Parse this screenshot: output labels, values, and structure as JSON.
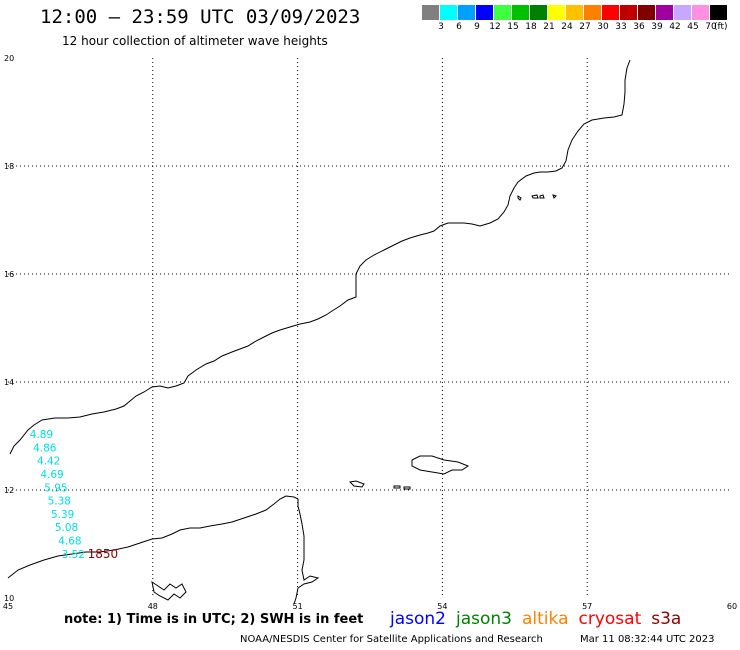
{
  "header": {
    "title": "12:00 — 23:59 UTC 03/09/2023",
    "subtitle": "12 hour collection of altimeter wave heights"
  },
  "legend": {
    "unit": "(ft)",
    "bins": [
      {
        "label": "3",
        "color": "#808080"
      },
      {
        "label": "6",
        "color": "#00ffff"
      },
      {
        "label": "9",
        "color": "#00a0ff"
      },
      {
        "label": "12",
        "color": "#0000ff"
      },
      {
        "label": "15",
        "color": "#40ff40"
      },
      {
        "label": "18",
        "color": "#00c000"
      },
      {
        "label": "21",
        "color": "#008000"
      },
      {
        "label": "24",
        "color": "#ffff00"
      },
      {
        "label": "27",
        "color": "#ffc000"
      },
      {
        "label": "30",
        "color": "#ff8000"
      },
      {
        "label": "33",
        "color": "#ff0000"
      },
      {
        "label": "36",
        "color": "#c00000"
      },
      {
        "label": "39",
        "color": "#800000"
      },
      {
        "label": "42",
        "color": "#a000a0"
      },
      {
        "label": "45",
        "color": "#c8a8ff"
      },
      {
        "label": "70",
        "color": "#ff90e0"
      },
      {
        "label": "",
        "color": "#000000"
      }
    ]
  },
  "axes": {
    "x_ticks": [
      "45",
      "48",
      "51",
      "54",
      "57",
      "60"
    ],
    "y_ticks": [
      "20",
      "18",
      "16",
      "14",
      "12",
      "10"
    ],
    "lon_range": [
      45,
      60
    ],
    "lat_range": [
      10,
      20
    ]
  },
  "observations": [
    {
      "value": "4.89",
      "lon": 45.45,
      "lat": 12.96
    },
    {
      "value": "4.86",
      "lon": 45.52,
      "lat": 12.71
    },
    {
      "value": "4.42",
      "lon": 45.6,
      "lat": 12.47
    },
    {
      "value": "4.69",
      "lon": 45.67,
      "lat": 12.22
    },
    {
      "value": "5.95",
      "lon": 45.75,
      "lat": 11.97
    },
    {
      "value": "5.38",
      "lon": 45.82,
      "lat": 11.73
    },
    {
      "value": "5.39",
      "lon": 45.89,
      "lat": 11.48
    },
    {
      "value": "5.08",
      "lon": 45.97,
      "lat": 11.24
    },
    {
      "value": "4.68",
      "lon": 46.04,
      "lat": 10.99
    },
    {
      "value": "3.52",
      "lon": 46.11,
      "lat": 10.74
    }
  ],
  "track_time": {
    "label": "1850",
    "lon": 46.65,
    "lat": 10.74
  },
  "footer": {
    "note": "note: 1) Time is in UTC; 2) SWH is in feet",
    "satellites": [
      {
        "name": "jason2",
        "color": "#0000ff"
      },
      {
        "name": "jason3",
        "color": "#008000"
      },
      {
        "name": "altika",
        "color": "#ff8000"
      },
      {
        "name": "cryosat",
        "color": "#ff0000"
      },
      {
        "name": "s3a",
        "color": "#900000"
      }
    ],
    "credit": "NOAA/NESDIS Center for Satellite Applications and Research",
    "timestamp": "Mar 11 08:32:44 UTC 2023"
  }
}
